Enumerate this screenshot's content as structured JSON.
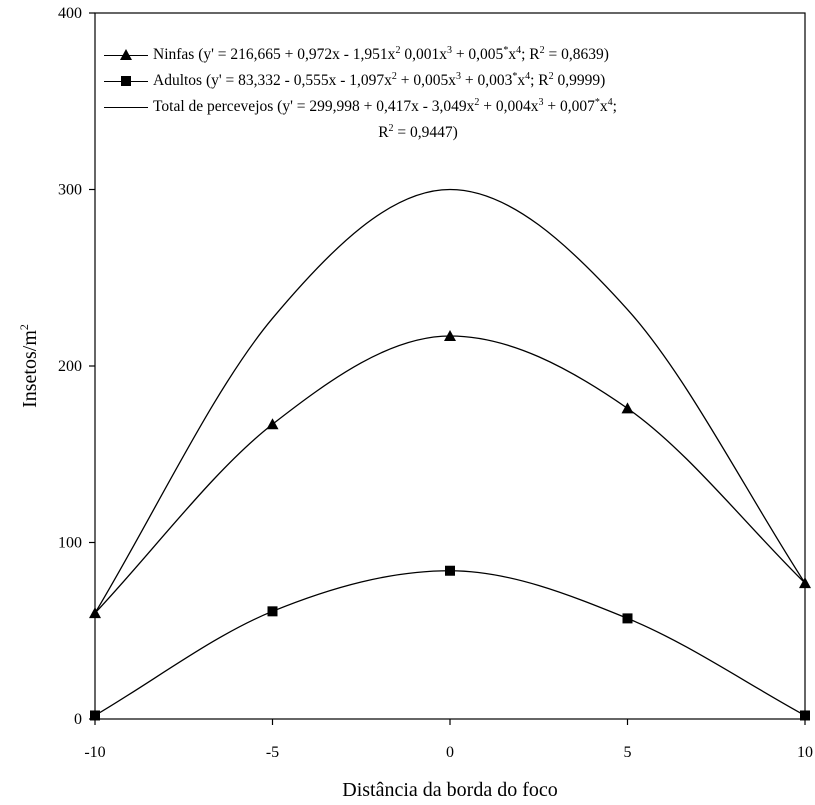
{
  "chart_data": {
    "type": "line",
    "xlabel": "Distância da borda do foco",
    "ylabel_main": "Insetos/m",
    "ylabel_sup": "2",
    "xlim": [
      -10,
      10
    ],
    "ylim": [
      0,
      400
    ],
    "x_ticks": [
      "-10",
      "-5",
      "0",
      "5",
      "10"
    ],
    "y_ticks": [
      "0",
      "100",
      "200",
      "300",
      "400"
    ],
    "grid": false,
    "legend_position": "top-left",
    "x": [
      -10,
      -5,
      0,
      5,
      10
    ],
    "series": [
      {
        "name": "Ninfas",
        "marker": "triangle",
        "values": [
          60,
          167,
          217,
          176,
          77
        ]
      },
      {
        "name": "Adultos",
        "marker": "square",
        "values": [
          2,
          61,
          84,
          57,
          2
        ]
      },
      {
        "name": "Total de percevejos",
        "marker": "none",
        "values": [
          60,
          227,
          300,
          232,
          77
        ]
      }
    ],
    "legend": {
      "ninfas_parts": [
        "Ninfas (y' = 216,665 + 0,972x - 1,951x",
        "2",
        " 0,001x",
        "3",
        " + 0,005",
        "*",
        "x",
        "4",
        "; R",
        "2",
        " = 0,8639)"
      ],
      "adultos_parts": [
        "Adultos (y' = 83,332 - 0,555x - 1,097x",
        "2",
        " + 0,005x",
        "3",
        " + 0,003",
        "*",
        "x",
        "4",
        "; R",
        "2",
        " 0,9999)"
      ],
      "total_parts": [
        "Total de percevejos (y' = 299,998 + 0,417x - 3,049x",
        "2",
        " + 0,004x",
        "3",
        " + 0,007",
        "*",
        "x",
        "4",
        ";"
      ],
      "total_cont_parts": [
        "R",
        "2",
        " =  0,9447)"
      ]
    }
  }
}
